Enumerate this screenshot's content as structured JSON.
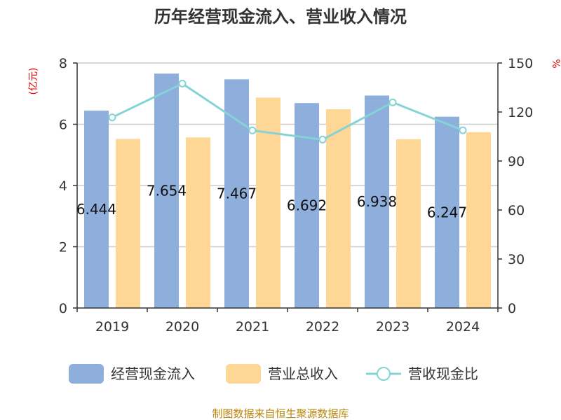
{
  "chart_data": {
    "type": "bar",
    "title": "历年经营现金流入、营业收入情况",
    "categories": [
      "2019",
      "2020",
      "2021",
      "2022",
      "2023",
      "2024"
    ],
    "left_axis": {
      "unit": "(亿元)",
      "min": 0,
      "max": 8,
      "ticks": [
        "0",
        "2",
        "4",
        "6",
        "8"
      ]
    },
    "right_axis": {
      "unit": "%",
      "min": 0,
      "max": 150,
      "ticks": [
        "0",
        "30",
        "60",
        "90",
        "120",
        "150"
      ]
    },
    "series": [
      {
        "name": "经营现金流入",
        "kind": "bar",
        "axis": "left",
        "color": "#8eaedb",
        "values": [
          6.444,
          7.654,
          7.467,
          6.692,
          6.938,
          6.247
        ],
        "labels": [
          "6.444",
          "7.654",
          "7.467",
          "6.692",
          "6.938",
          "6.247"
        ]
      },
      {
        "name": "营业总收入",
        "kind": "bar",
        "axis": "left",
        "color": "#fed797",
        "values": [
          5.52,
          5.57,
          6.87,
          6.49,
          5.51,
          5.74
        ]
      },
      {
        "name": "营收现金比",
        "kind": "line",
        "axis": "right",
        "color": "#84d3d6",
        "values": [
          116.7,
          137.4,
          108.7,
          103.1,
          125.9,
          108.8
        ]
      }
    ],
    "grid": true,
    "legend_position": "bottom"
  },
  "footer": {
    "source": "制图数据来自恒生聚源数据库"
  }
}
